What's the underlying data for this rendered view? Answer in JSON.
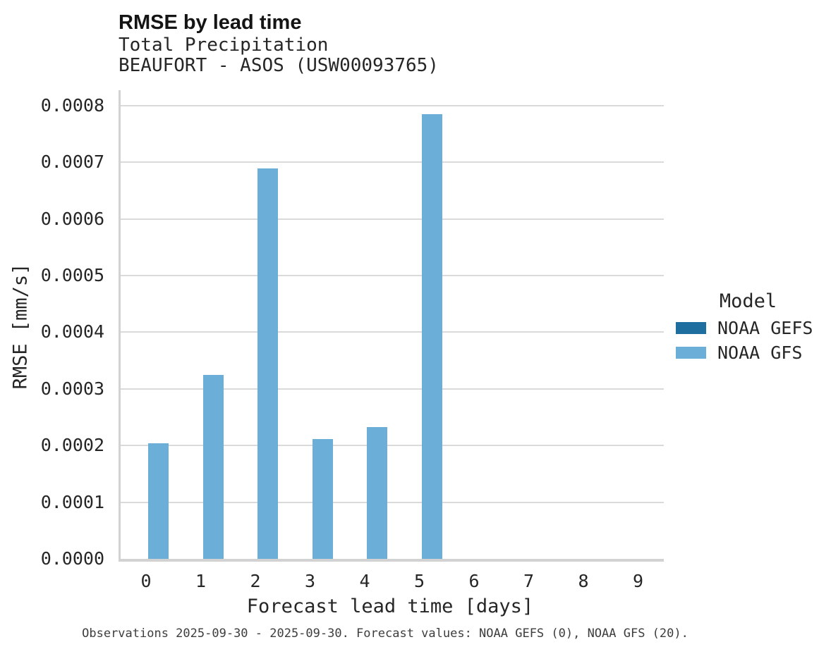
{
  "header": {
    "title": "RMSE by lead time",
    "subtitle_line1": "Total Precipitation",
    "subtitle_line2": "BEAUFORT - ASOS (USW00093765)"
  },
  "legend": {
    "title": "Model",
    "entries": [
      {
        "label": "NOAA GEFS",
        "color": "#1e6fa0",
        "swatch_icon": "legend-swatch-dark-blue"
      },
      {
        "label": "NOAA GFS",
        "color": "#6bafd8",
        "swatch_icon": "legend-swatch-light-blue"
      }
    ]
  },
  "footer": {
    "caption": "Observations 2025-09-30 - 2025-09-30. Forecast values: NOAA GEFS (0), NOAA GFS (20)."
  },
  "chart_data": {
    "type": "bar",
    "title": "RMSE by lead time",
    "subtitle": "Total Precipitation / BEAUFORT - ASOS (USW00093765)",
    "xlabel": "Forecast lead time [days]",
    "ylabel": "RMSE [mm/s]",
    "categories": [
      "0",
      "1",
      "2",
      "3",
      "4",
      "5",
      "6",
      "7",
      "8",
      "9"
    ],
    "series": [
      {
        "name": "NOAA GEFS",
        "color": "#1e6fa0",
        "values": [
          null,
          null,
          null,
          null,
          null,
          null,
          null,
          null,
          null,
          null
        ]
      },
      {
        "name": "NOAA GFS",
        "color": "#6bafd8",
        "values": [
          0.000204,
          0.000325,
          0.000689,
          0.000212,
          0.000232,
          0.000785,
          null,
          null,
          null,
          null
        ]
      }
    ],
    "ylim": [
      0.0,
      0.000827
    ],
    "yticks": [
      "0.0000",
      "0.0001",
      "0.0002",
      "0.0003",
      "0.0004",
      "0.0005",
      "0.0006",
      "0.0007",
      "0.0008"
    ],
    "ytick_values": [
      0.0,
      0.0001,
      0.0002,
      0.0003,
      0.0004,
      0.0005,
      0.0006,
      0.0007,
      0.0008
    ],
    "grid": true,
    "legend_title": "Model",
    "legend_position": "right"
  },
  "colors": {
    "grid": "#dadada",
    "spine": "#d2d2d2",
    "text": "#262626",
    "title": "#141414"
  }
}
